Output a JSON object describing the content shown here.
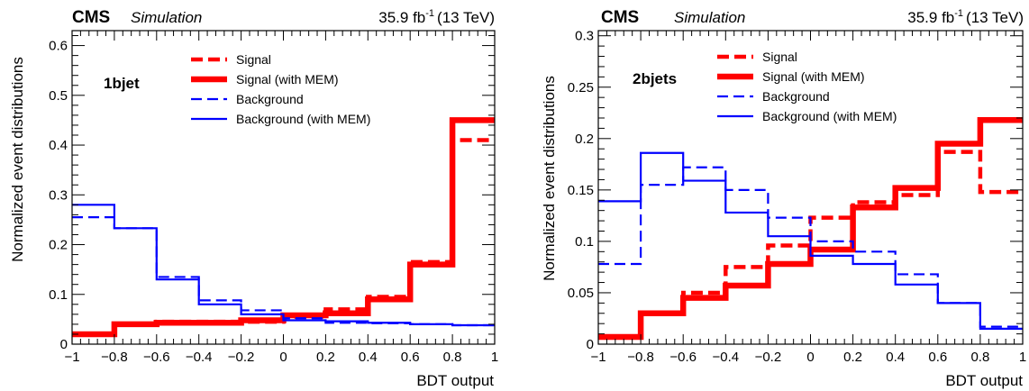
{
  "chart_data": [
    {
      "type": "histogram",
      "header": {
        "experiment": "CMS",
        "status": "Simulation",
        "lumi": "35.9 fb",
        "lumi_exp": "-1",
        "energy": "(13 TeV)"
      },
      "category_label": "1bjet",
      "xlabel": "BDT output",
      "ylabel": "Normalized event distributions",
      "xlim": [
        -1,
        1
      ],
      "ylim": [
        0,
        0.63
      ],
      "xticks": [
        -1,
        -0.8,
        -0.6,
        -0.4,
        -0.2,
        0,
        0.2,
        0.4,
        0.6,
        0.8,
        1
      ],
      "xtick_labels": [
        "−1",
        "−0.8",
        "−0.6",
        "−0.4",
        "−0.2",
        "0",
        "0.2",
        "0.4",
        "0.6",
        "0.8",
        "1"
      ],
      "yticks": [
        0,
        0.1,
        0.2,
        0.3,
        0.4,
        0.5,
        0.6
      ],
      "ytick_labels": [
        "0",
        "0.1",
        "0.2",
        "0.3",
        "0.4",
        "0.5",
        "0.6"
      ],
      "bin_edges": [
        -1,
        -0.8,
        -0.6,
        -0.4,
        -0.2,
        0,
        0.2,
        0.4,
        0.6,
        0.8,
        1
      ],
      "legend_position": "top-center",
      "series": [
        {
          "name": "Signal",
          "color": "#ff0000",
          "style": "dashed-thick",
          "values": [
            0.02,
            0.04,
            0.045,
            0.045,
            0.045,
            0.055,
            0.07,
            0.095,
            0.165,
            0.41
          ]
        },
        {
          "name": "Signal (with MEM)",
          "color": "#ff0000",
          "style": "solid-thick",
          "values": [
            0.02,
            0.04,
            0.043,
            0.043,
            0.048,
            0.058,
            0.062,
            0.09,
            0.16,
            0.45
          ]
        },
        {
          "name": "Background",
          "color": "#0000ff",
          "style": "dashed",
          "values": [
            0.255,
            0.233,
            0.135,
            0.088,
            0.068,
            0.052,
            0.043,
            0.042,
            0.04,
            0.038
          ]
        },
        {
          "name": "Background (with MEM)",
          "color": "#0000ff",
          "style": "solid",
          "values": [
            0.28,
            0.233,
            0.13,
            0.08,
            0.06,
            0.048,
            0.046,
            0.043,
            0.04,
            0.038
          ]
        }
      ]
    },
    {
      "type": "histogram",
      "header": {
        "experiment": "CMS",
        "status": "Simulation",
        "lumi": "35.9 fb",
        "lumi_exp": "-1",
        "energy": "(13 TeV)"
      },
      "category_label": "2bjets",
      "xlabel": "BDT output",
      "ylabel": "Normalized event distributions",
      "xlim": [
        -1,
        1
      ],
      "ylim": [
        0,
        0.305
      ],
      "xticks": [
        -1,
        -0.8,
        -0.6,
        -0.4,
        -0.2,
        0,
        0.2,
        0.4,
        0.6,
        0.8,
        1
      ],
      "xtick_labels": [
        "−1",
        "−0.8",
        "−0.6",
        "−0.4",
        "−0.2",
        "0",
        "0.2",
        "0.4",
        "0.6",
        "0.8",
        "1"
      ],
      "yticks": [
        0,
        0.05,
        0.1,
        0.15,
        0.2,
        0.25,
        0.3
      ],
      "ytick_labels": [
        "0",
        "0.05",
        "0.1",
        "0.15",
        "0.2",
        "0.25",
        "0.3"
      ],
      "bin_edges": [
        -1,
        -0.8,
        -0.6,
        -0.4,
        -0.2,
        0,
        0.2,
        0.4,
        0.6,
        0.8,
        1
      ],
      "legend_position": "top-center",
      "series": [
        {
          "name": "Signal",
          "color": "#ff0000",
          "style": "dashed-thick",
          "values": [
            0.007,
            0.03,
            0.05,
            0.075,
            0.096,
            0.123,
            0.138,
            0.145,
            0.187,
            0.148
          ]
        },
        {
          "name": "Signal (with MEM)",
          "color": "#ff0000",
          "style": "solid-thick",
          "values": [
            0.007,
            0.03,
            0.045,
            0.057,
            0.078,
            0.092,
            0.133,
            0.152,
            0.195,
            0.218
          ]
        },
        {
          "name": "Background",
          "color": "#0000ff",
          "style": "dashed",
          "values": [
            0.078,
            0.155,
            0.172,
            0.15,
            0.123,
            0.1,
            0.09,
            0.068,
            0.04,
            0.017
          ]
        },
        {
          "name": "Background (with MEM)",
          "color": "#0000ff",
          "style": "solid",
          "values": [
            0.139,
            0.186,
            0.159,
            0.128,
            0.105,
            0.086,
            0.078,
            0.058,
            0.04,
            0.015
          ]
        }
      ]
    }
  ]
}
